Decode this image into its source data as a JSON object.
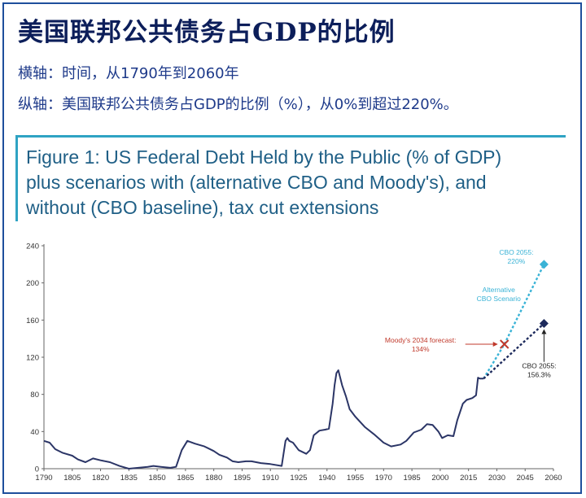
{
  "header": {
    "title": "美国联邦公共债务占GDP的比例",
    "subtitle_x": "横轴：时间，从1790年到2060年",
    "subtitle_y": "纵轴：美国联邦公共债务占GDP的比例（%），从0%到超过220%。"
  },
  "figure": {
    "title_lines": [
      "Figure 1: US Federal Debt Held by the Public (% of GDP)",
      "plus scenarios with (alternative CBO and Moody's), and",
      "without (CBO baseline), tax cut extensions"
    ]
  },
  "chart_data": {
    "type": "line",
    "title": "Figure 1: US Federal Debt Held by the Public (% of GDP) plus scenarios with (alternative CBO and Moody's), and without (CBO baseline), tax cut extensions",
    "xlabel": "",
    "ylabel": "",
    "xlim": [
      1790,
      2060
    ],
    "ylim": [
      0,
      240
    ],
    "x_ticks": [
      1790,
      1805,
      1820,
      1835,
      1850,
      1865,
      1880,
      1895,
      1910,
      1925,
      1940,
      1955,
      1970,
      1985,
      2000,
      2015,
      2030,
      2045,
      2060
    ],
    "y_ticks": [
      0,
      40,
      80,
      120,
      160,
      200,
      240
    ],
    "grid": false,
    "colors": {
      "historical": "#2b3566",
      "alternative": "#3ab3d6",
      "baseline": "#1d2a5c",
      "moody": "#c0392b"
    },
    "series": [
      {
        "points": [
          [
            1790,
            30
          ],
          [
            1793,
            28
          ],
          [
            1796,
            21
          ],
          [
            1800,
            17
          ],
          [
            1805,
            14
          ],
          [
            1808,
            10
          ],
          [
            1812,
            7
          ],
          [
            1816,
            11
          ],
          [
            1820,
            9
          ],
          [
            1825,
            7
          ],
          [
            1830,
            3
          ],
          [
            1835,
            0
          ],
          [
            1840,
            1
          ],
          [
            1845,
            2
          ],
          [
            1848,
            3
          ],
          [
            1852,
            2
          ],
          [
            1857,
            1
          ],
          [
            1860,
            2
          ],
          [
            1863,
            20
          ],
          [
            1866,
            30
          ],
          [
            1870,
            27
          ],
          [
            1875,
            24
          ],
          [
            1880,
            19
          ],
          [
            1883,
            15
          ],
          [
            1887,
            12
          ],
          [
            1890,
            8
          ],
          [
            1893,
            7
          ],
          [
            1897,
            8
          ],
          [
            1900,
            8
          ],
          [
            1905,
            6
          ],
          [
            1910,
            5
          ],
          [
            1916,
            3
          ],
          [
            1918,
            30
          ],
          [
            1919,
            33
          ],
          [
            1920,
            30
          ],
          [
            1922,
            28
          ],
          [
            1925,
            20
          ],
          [
            1929,
            16
          ],
          [
            1931,
            20
          ],
          [
            1933,
            36
          ],
          [
            1936,
            41
          ],
          [
            1939,
            42
          ],
          [
            1941,
            43
          ],
          [
            1943,
            70
          ],
          [
            1944,
            90
          ],
          [
            1945,
            103
          ],
          [
            1946,
            106
          ],
          [
            1948,
            90
          ],
          [
            1950,
            78
          ],
          [
            1952,
            64
          ],
          [
            1955,
            56
          ],
          [
            1960,
            45
          ],
          [
            1965,
            37
          ],
          [
            1970,
            28
          ],
          [
            1974,
            24
          ],
          [
            1979,
            26
          ],
          [
            1982,
            30
          ],
          [
            1986,
            39
          ],
          [
            1990,
            42
          ],
          [
            1993,
            48
          ],
          [
            1996,
            47
          ],
          [
            1999,
            40
          ],
          [
            2001,
            33
          ],
          [
            2004,
            36
          ],
          [
            2007,
            35
          ],
          [
            2009,
            52
          ],
          [
            2012,
            70
          ],
          [
            2014,
            74
          ],
          [
            2017,
            76
          ],
          [
            2019,
            79
          ],
          [
            2020,
            98
          ],
          [
            2021,
            97
          ],
          [
            2023,
            97
          ]
        ]
      },
      {
        "name": "Alternative CBO Scenario",
        "points": [
          [
            2023,
            97
          ],
          [
            2034,
            134
          ],
          [
            2055,
            220
          ]
        ]
      },
      {
        "points": [
          [
            2023,
            97
          ],
          [
            2055,
            156.3
          ]
        ]
      }
    ],
    "annotations": {
      "moody": {
        "lines": [
          "Moody's 2034 forecast:",
          "134%"
        ],
        "x": 2034,
        "y": 134
      },
      "alt_end": {
        "lines": [
          "CBO 2055:",
          "220%"
        ],
        "x": 2055,
        "y": 220
      },
      "alt_label": {
        "lines": [
          "Alternative",
          "CBO Scenario"
        ]
      },
      "base_end": {
        "lines": [
          "CBO 2055:",
          "156.3%"
        ],
        "x": 2055,
        "y": 156.3
      }
    }
  }
}
